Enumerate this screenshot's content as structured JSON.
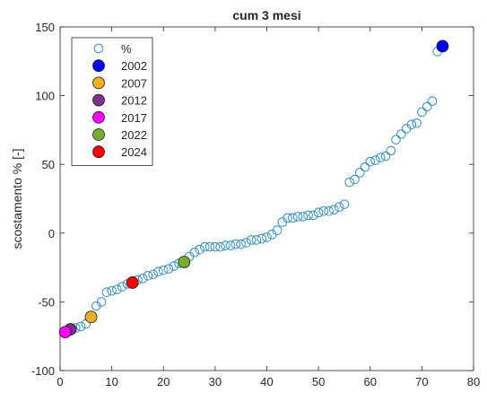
{
  "chart_data": {
    "type": "scatter",
    "title": "cum 3 mesi",
    "xlabel": "",
    "ylabel": "scostamento % [-]",
    "xlim": [
      0,
      80
    ],
    "ylim": [
      -100,
      150
    ],
    "xticks": [
      0,
      10,
      20,
      30,
      40,
      50,
      60,
      70,
      80
    ],
    "yticks": [
      -100,
      -50,
      0,
      50,
      100,
      150
    ],
    "grid": false,
    "legend_position": "top-left",
    "series": [
      {
        "name": "%",
        "marker": "open-circle",
        "color": "#2f8fc8",
        "x": [
          1,
          2,
          3,
          4,
          5,
          6,
          7,
          8,
          9,
          10,
          11,
          12,
          13,
          14,
          15,
          16,
          17,
          18,
          19,
          20,
          21,
          22,
          23,
          24,
          25,
          26,
          27,
          28,
          29,
          30,
          31,
          32,
          33,
          34,
          35,
          36,
          37,
          38,
          39,
          40,
          41,
          42,
          43,
          44,
          45,
          46,
          47,
          48,
          49,
          50,
          51,
          52,
          53,
          54,
          55,
          56,
          57,
          58,
          59,
          60,
          61,
          62,
          63,
          64,
          65,
          66,
          67,
          68,
          69,
          70,
          71,
          72,
          73
        ],
        "y": [
          -72,
          -70,
          -69,
          -68,
          -66,
          -61,
          -53,
          -50,
          -43,
          -42,
          -41,
          -39,
          -37,
          -36,
          -34,
          -33,
          -31,
          -30,
          -28,
          -27,
          -26,
          -24,
          -22,
          -21,
          -17,
          -14,
          -12,
          -10,
          -10,
          -10,
          -10,
          -9,
          -9,
          -8,
          -8,
          -7,
          -5,
          -5,
          -4,
          -3,
          -1,
          2,
          8,
          11,
          11,
          12,
          12,
          13,
          13,
          15,
          16,
          16,
          17,
          19,
          21,
          37,
          39,
          44,
          48,
          52,
          53,
          55,
          56,
          60,
          68,
          72,
          76,
          79,
          80,
          88,
          92,
          96,
          132
        ]
      },
      {
        "name": "2002",
        "marker": "filled-circle",
        "color": "#0000ff",
        "x": [
          74
        ],
        "y": [
          136
        ]
      },
      {
        "name": "2007",
        "marker": "filled-circle",
        "color": "#edb120",
        "x": [
          6
        ],
        "y": [
          -61
        ]
      },
      {
        "name": "2012",
        "marker": "filled-circle",
        "color": "#7e2f8e",
        "x": [
          2
        ],
        "y": [
          -70
        ]
      },
      {
        "name": "2017",
        "marker": "filled-circle",
        "color": "#ff00ff",
        "x": [
          1
        ],
        "y": [
          -72
        ]
      },
      {
        "name": "2022",
        "marker": "filled-circle",
        "color": "#77ac30",
        "x": [
          24
        ],
        "y": [
          -21
        ]
      },
      {
        "name": "2024",
        "marker": "filled-circle",
        "color": "#ff0000",
        "x": [
          14
        ],
        "y": [
          -36
        ]
      }
    ]
  }
}
